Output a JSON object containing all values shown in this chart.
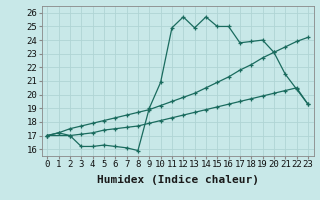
{
  "title": "",
  "xlabel": "Humidex (Indice chaleur)",
  "ylabel": "",
  "xlim": [
    -0.5,
    23.5
  ],
  "ylim": [
    15.5,
    26.5
  ],
  "yticks": [
    16,
    17,
    18,
    19,
    20,
    21,
    22,
    23,
    24,
    25,
    26
  ],
  "xticks": [
    0,
    1,
    2,
    3,
    4,
    5,
    6,
    7,
    8,
    9,
    10,
    11,
    12,
    13,
    14,
    15,
    16,
    17,
    18,
    19,
    20,
    21,
    22,
    23
  ],
  "bg_color": "#c8e8e8",
  "line_color": "#1a6b5e",
  "grid_color": "#b0d4d4",
  "line1_x": [
    0,
    1,
    2,
    3,
    4,
    5,
    6,
    7,
    8,
    9,
    10,
    11,
    12,
    13,
    14,
    15,
    16,
    17,
    18,
    19,
    20,
    21,
    22,
    23
  ],
  "line1_y": [
    17.0,
    17.2,
    17.0,
    16.2,
    16.2,
    16.3,
    16.2,
    16.1,
    15.9,
    19.0,
    20.9,
    24.9,
    25.7,
    24.9,
    25.7,
    25.0,
    25.0,
    23.8,
    23.9,
    24.0,
    23.1,
    21.5,
    20.4,
    19.3
  ],
  "line2_x": [
    0,
    2,
    3,
    4,
    5,
    6,
    7,
    8,
    9,
    10,
    11,
    12,
    13,
    14,
    15,
    16,
    17,
    18,
    19,
    20,
    21,
    22,
    23
  ],
  "line2_y": [
    17.0,
    17.0,
    17.1,
    17.2,
    17.4,
    17.5,
    17.6,
    17.7,
    17.9,
    18.1,
    18.3,
    18.5,
    18.7,
    18.9,
    19.1,
    19.3,
    19.5,
    19.7,
    19.9,
    20.1,
    20.3,
    20.5,
    19.3
  ],
  "line3_x": [
    0,
    1,
    2,
    3,
    4,
    5,
    6,
    7,
    8,
    9,
    10,
    11,
    12,
    13,
    14,
    15,
    16,
    17,
    18,
    19,
    20,
    21,
    22,
    23
  ],
  "line3_y": [
    17.0,
    17.2,
    17.5,
    17.7,
    17.9,
    18.1,
    18.3,
    18.5,
    18.7,
    18.9,
    19.2,
    19.5,
    19.8,
    20.1,
    20.5,
    20.9,
    21.3,
    21.8,
    22.2,
    22.7,
    23.1,
    23.5,
    23.9,
    24.2
  ],
  "fontsize_label": 8,
  "fontsize_tick": 6.5
}
